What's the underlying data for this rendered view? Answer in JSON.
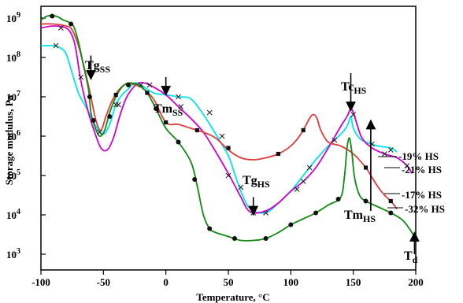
{
  "chart_data": {
    "type": "line",
    "title": "",
    "xlabel": "Temperature, °C",
    "ylabel": "Storage modulus, Pa",
    "xlim": [
      -100,
      200
    ],
    "ylim_log10": [
      2.6,
      9.3
    ],
    "y_scale": "log",
    "x_ticks": [
      {
        "value": -100,
        "label": "-100"
      },
      {
        "value": -50,
        "label": "-50"
      },
      {
        "value": 0,
        "label": "0"
      },
      {
        "value": 50,
        "label": "50"
      },
      {
        "value": 100,
        "label": "100"
      },
      {
        "value": 150,
        "label": "150"
      },
      {
        "value": 200,
        "label": "200"
      }
    ],
    "y_ticks": [
      {
        "exp": 3,
        "base": "10",
        "sup": "3"
      },
      {
        "exp": 4,
        "base": "10",
        "sup": "4"
      },
      {
        "exp": 5,
        "base": "10",
        "sup": "5"
      },
      {
        "exp": 6,
        "base": "10",
        "sup": "6"
      },
      {
        "exp": 7,
        "base": "10",
        "sup": "7"
      },
      {
        "exp": 8,
        "base": "10",
        "sup": "8"
      },
      {
        "exp": 9,
        "base": "10",
        "sup": "9"
      }
    ],
    "series": [
      {
        "name": "-19% HS",
        "color": "#00e5ee",
        "marker": "x",
        "points": [
          [
            -100,
            8.3
          ],
          [
            -95,
            8.3
          ],
          [
            -90,
            8.3
          ],
          [
            -85,
            8.25
          ],
          [
            -80,
            8.1
          ],
          [
            -75,
            7.6
          ],
          [
            -70,
            7.1
          ],
          [
            -65,
            6.8
          ],
          [
            -60,
            6.5
          ],
          [
            -55,
            6.2
          ],
          [
            -50,
            6.05
          ],
          [
            -45,
            6.3
          ],
          [
            -40,
            6.8
          ],
          [
            -35,
            7.05
          ],
          [
            -30,
            7.2
          ],
          [
            -25,
            7.35
          ],
          [
            -20,
            7.3
          ],
          [
            -10,
            7.1
          ],
          [
            0,
            7.05
          ],
          [
            10,
            7.0
          ],
          [
            20,
            6.95
          ],
          [
            30,
            6.55
          ],
          [
            40,
            6.05
          ],
          [
            50,
            5.5
          ],
          [
            55,
            5.05
          ],
          [
            60,
            4.6
          ],
          [
            65,
            4.25
          ],
          [
            70,
            4.1
          ],
          [
            75,
            4.05
          ],
          [
            80,
            4.05
          ],
          [
            85,
            4.15
          ],
          [
            90,
            4.3
          ],
          [
            100,
            4.6
          ],
          [
            110,
            5.0
          ],
          [
            120,
            5.4
          ],
          [
            130,
            5.75
          ],
          [
            140,
            6.05
          ],
          [
            145,
            6.25
          ],
          [
            148,
            6.5
          ],
          [
            150,
            6.2
          ],
          [
            155,
            5.95
          ],
          [
            160,
            5.85
          ],
          [
            170,
            5.75
          ],
          [
            180,
            5.7
          ],
          [
            185,
            5.6
          ]
        ],
        "markers": [
          [
            -88,
            8.3
          ],
          [
            -68,
            7.5
          ],
          [
            -53,
            6.1
          ],
          [
            -40,
            6.8
          ],
          [
            -20,
            7.3
          ],
          [
            10,
            7.0
          ],
          [
            35,
            6.6
          ],
          [
            45,
            6.0
          ],
          [
            60,
            4.7
          ],
          [
            80,
            4.05
          ],
          [
            105,
            4.65
          ],
          [
            115,
            5.2
          ],
          [
            135,
            5.9
          ],
          [
            165,
            5.8
          ],
          [
            180,
            5.65
          ]
        ]
      },
      {
        "name": "-21% HS",
        "color": "#d000d0",
        "marker": "x",
        "points": [
          [
            -100,
            8.75
          ],
          [
            -90,
            8.8
          ],
          [
            -80,
            8.75
          ],
          [
            -75,
            8.55
          ],
          [
            -72,
            8.2
          ],
          [
            -68,
            7.4
          ],
          [
            -62,
            6.6
          ],
          [
            -57,
            6.1
          ],
          [
            -52,
            5.7
          ],
          [
            -47,
            5.65
          ],
          [
            -42,
            5.95
          ],
          [
            -37,
            6.5
          ],
          [
            -32,
            6.95
          ],
          [
            -27,
            7.2
          ],
          [
            -22,
            7.35
          ],
          [
            -17,
            7.35
          ],
          [
            -10,
            7.25
          ],
          [
            0,
            7.05
          ],
          [
            10,
            6.75
          ],
          [
            20,
            6.45
          ],
          [
            30,
            6.1
          ],
          [
            40,
            5.6
          ],
          [
            50,
            5.05
          ],
          [
            60,
            4.45
          ],
          [
            65,
            4.15
          ],
          [
            70,
            4.05
          ],
          [
            80,
            4.1
          ],
          [
            90,
            4.3
          ],
          [
            100,
            4.6
          ],
          [
            110,
            4.85
          ],
          [
            120,
            5.2
          ],
          [
            130,
            5.7
          ],
          [
            140,
            6.25
          ],
          [
            145,
            6.5
          ],
          [
            148,
            6.7
          ],
          [
            150,
            6.6
          ],
          [
            153,
            6.3
          ],
          [
            157,
            5.95
          ],
          [
            165,
            5.7
          ],
          [
            175,
            5.55
          ],
          [
            185,
            5.45
          ],
          [
            193,
            5.25
          ],
          [
            197,
            5.05
          ]
        ],
        "markers": [
          [
            -84,
            8.75
          ],
          [
            -38,
            6.8
          ],
          [
            -13,
            7.3
          ],
          [
            12,
            6.75
          ],
          [
            50,
            5.0
          ],
          [
            70,
            4.05
          ],
          [
            110,
            4.85
          ],
          [
            150,
            6.55
          ],
          [
            175,
            5.55
          ],
          [
            193,
            5.25
          ]
        ]
      },
      {
        "name": "-17% HS",
        "color": "#e03c3c",
        "marker": "square",
        "points": [
          [
            -100,
            8.85
          ],
          [
            -90,
            8.85
          ],
          [
            -80,
            8.8
          ],
          [
            -75,
            8.7
          ],
          [
            -70,
            8.3
          ],
          [
            -65,
            7.7
          ],
          [
            -60,
            7.0
          ],
          [
            -56,
            6.4
          ],
          [
            -52,
            6.15
          ],
          [
            -48,
            6.5
          ],
          [
            -43,
            6.9
          ],
          [
            -37,
            7.2
          ],
          [
            -30,
            7.35
          ],
          [
            -25,
            7.3
          ],
          [
            -20,
            7.25
          ],
          [
            -10,
            6.95
          ],
          [
            0,
            6.35
          ],
          [
            10,
            6.3
          ],
          [
            20,
            6.2
          ],
          [
            30,
            6.1
          ],
          [
            40,
            5.95
          ],
          [
            50,
            5.65
          ],
          [
            60,
            5.45
          ],
          [
            70,
            5.4
          ],
          [
            80,
            5.45
          ],
          [
            90,
            5.55
          ],
          [
            100,
            5.75
          ],
          [
            108,
            6.05
          ],
          [
            115,
            6.45
          ],
          [
            118,
            6.55
          ],
          [
            121,
            6.45
          ],
          [
            124,
            6.15
          ],
          [
            130,
            5.85
          ],
          [
            140,
            5.75
          ],
          [
            150,
            5.55
          ],
          [
            160,
            5.2
          ],
          [
            165,
            4.95
          ],
          [
            170,
            4.7
          ],
          [
            175,
            4.5
          ],
          [
            180,
            4.35
          ],
          [
            185,
            4.15
          ]
        ],
        "markers": [
          [
            -40,
            7.05
          ],
          [
            -15,
            7.1
          ],
          [
            0,
            6.35
          ],
          [
            25,
            6.15
          ],
          [
            50,
            5.7
          ],
          [
            90,
            5.55
          ],
          [
            110,
            6.15
          ],
          [
            160,
            5.2
          ],
          [
            180,
            4.35
          ]
        ]
      },
      {
        "name": "-32% HS",
        "color": "#118a11",
        "marker": "dot",
        "points": [
          [
            -100,
            8.95
          ],
          [
            -95,
            9.05
          ],
          [
            -88,
            9.05
          ],
          [
            -82,
            8.95
          ],
          [
            -78,
            8.9
          ],
          [
            -74,
            8.8
          ],
          [
            -70,
            8.4
          ],
          [
            -66,
            7.8
          ],
          [
            -62,
            7.2
          ],
          [
            -60,
            6.6
          ],
          [
            -57,
            6.25
          ],
          [
            -53,
            6.0
          ],
          [
            -49,
            6.15
          ],
          [
            -45,
            6.6
          ],
          [
            -40,
            7.0
          ],
          [
            -35,
            7.25
          ],
          [
            -30,
            7.35
          ],
          [
            -22,
            7.3
          ],
          [
            -15,
            7.1
          ],
          [
            -8,
            6.7
          ],
          [
            0,
            6.2
          ],
          [
            10,
            5.85
          ],
          [
            20,
            5.35
          ],
          [
            25,
            4.75
          ],
          [
            30,
            4.0
          ],
          [
            35,
            3.65
          ],
          [
            40,
            3.55
          ],
          [
            50,
            3.45
          ],
          [
            60,
            3.35
          ],
          [
            70,
            3.35
          ],
          [
            80,
            3.4
          ],
          [
            90,
            3.55
          ],
          [
            100,
            3.75
          ],
          [
            110,
            3.9
          ],
          [
            120,
            4.05
          ],
          [
            130,
            4.25
          ],
          [
            140,
            4.45
          ],
          [
            143,
            5.0
          ],
          [
            145,
            5.7
          ],
          [
            147,
            5.95
          ],
          [
            149,
            5.55
          ],
          [
            151,
            4.95
          ],
          [
            155,
            4.5
          ],
          [
            160,
            4.35
          ],
          [
            170,
            4.2
          ],
          [
            180,
            4.05
          ],
          [
            190,
            3.85
          ],
          [
            198,
            3.5
          ]
        ],
        "markers": [
          [
            -91,
            9.05
          ],
          [
            -76,
            8.85
          ],
          [
            -61,
            7.0
          ],
          [
            -58,
            6.4
          ],
          [
            -45,
            6.5
          ],
          [
            -30,
            7.3
          ],
          [
            -8,
            6.7
          ],
          [
            10,
            5.85
          ],
          [
            23,
            4.9
          ],
          [
            35,
            3.65
          ],
          [
            55,
            3.4
          ],
          [
            80,
            3.4
          ],
          [
            100,
            3.75
          ],
          [
            120,
            4.05
          ],
          [
            138,
            4.4
          ],
          [
            160,
            4.35
          ],
          [
            180,
            4.05
          ]
        ]
      }
    ],
    "annotations": [
      {
        "id": "tg-ss",
        "main": "Tg",
        "sub": "SS",
        "at": [
          -60,
          7.65
        ],
        "arrow_to": [
          -60,
          7.55
        ],
        "arrow_from": [
          -60,
          8.05
        ]
      },
      {
        "id": "tm-ss",
        "main": "Tm",
        "sub": "SS",
        "at": [
          0,
          7.2
        ],
        "arrow_to": [
          0,
          7.15
        ],
        "arrow_from": [
          0,
          7.5
        ]
      },
      {
        "id": "tc-hs",
        "main": "Tc",
        "sub": "HS",
        "at": [
          148,
          6.8
        ],
        "arrow_to": [
          148,
          6.75
        ],
        "arrow_from": [
          148,
          7.6
        ]
      },
      {
        "id": "tg-hs",
        "main": "Tg",
        "sub": "HS",
        "at": [
          70,
          4.15
        ],
        "arrow_to": [
          70,
          4.1
        ],
        "arrow_from": [
          70,
          4.45
        ]
      },
      {
        "id": "tm-hs",
        "main": "Tm",
        "sub": "HS",
        "at": [
          164,
          5.85
        ],
        "arrow_to": [
          164,
          6.3
        ],
        "arrow_from": [
          164,
          4.1
        ]
      },
      {
        "id": "td",
        "main": "T",
        "sub": "d",
        "at": [
          199,
          3.5
        ],
        "arrow_to": [
          199,
          3.45
        ],
        "arrow_from": [
          199,
          3.0
        ]
      }
    ],
    "legend_placement": "right, at curve ends"
  }
}
